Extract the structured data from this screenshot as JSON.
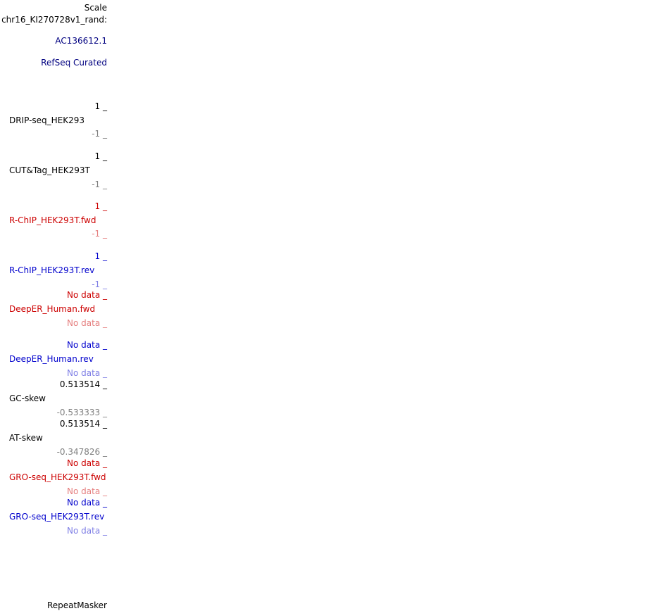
{
  "scale": {
    "label": "Scale",
    "chrom": "chr16_KI270728v1_rand:"
  },
  "tracks": {
    "contig": {
      "label": "AC136612.1"
    },
    "refseq": {
      "label": "RefSeq Curated"
    },
    "drip": {
      "max": "1 _",
      "name": "DRIP-seq_HEK293",
      "min": "-1 _"
    },
    "cuttag": {
      "max": "1 _",
      "name": "CUT&Tag_HEK293T",
      "min": "-1 _"
    },
    "rchip_fwd": {
      "max": "1 _",
      "name": "R-ChIP_HEK293T.fwd",
      "min": "-1 _"
    },
    "rchip_rev": {
      "max": "1 _",
      "name": "R-ChIP_HEK293T.rev",
      "min": "-1 _"
    },
    "deeper_fwd": {
      "max": "No data _",
      "name": "DeepER_Human.fwd",
      "min": "No data _"
    },
    "deeper_rev": {
      "max": "No data _",
      "name": "DeepER_Human.rev",
      "min": "No data _"
    },
    "gc_skew": {
      "max": "0.513514 _",
      "name": "GC-skew",
      "min": "-0.533333 _"
    },
    "at_skew": {
      "max": "0.513514 _",
      "name": "AT-skew",
      "min": "-0.347826 _"
    },
    "gro_fwd": {
      "max": "No data _",
      "name": "GRO-seq_HEK293T.fwd",
      "min": "No data _"
    },
    "gro_rev": {
      "max": "No data _",
      "name": "GRO-seq_HEK293T.rev",
      "min": "No data _"
    },
    "repeatmasker": {
      "label": "RepeatMasker"
    }
  },
  "colors": {
    "default": "#000000",
    "navy": "#000080",
    "fwd": "#cc0000",
    "fwd_light": "#e57f7f",
    "rev": "#0000cc",
    "rev_light": "#7f7fe5",
    "min_gray": "#7f7f7f"
  }
}
